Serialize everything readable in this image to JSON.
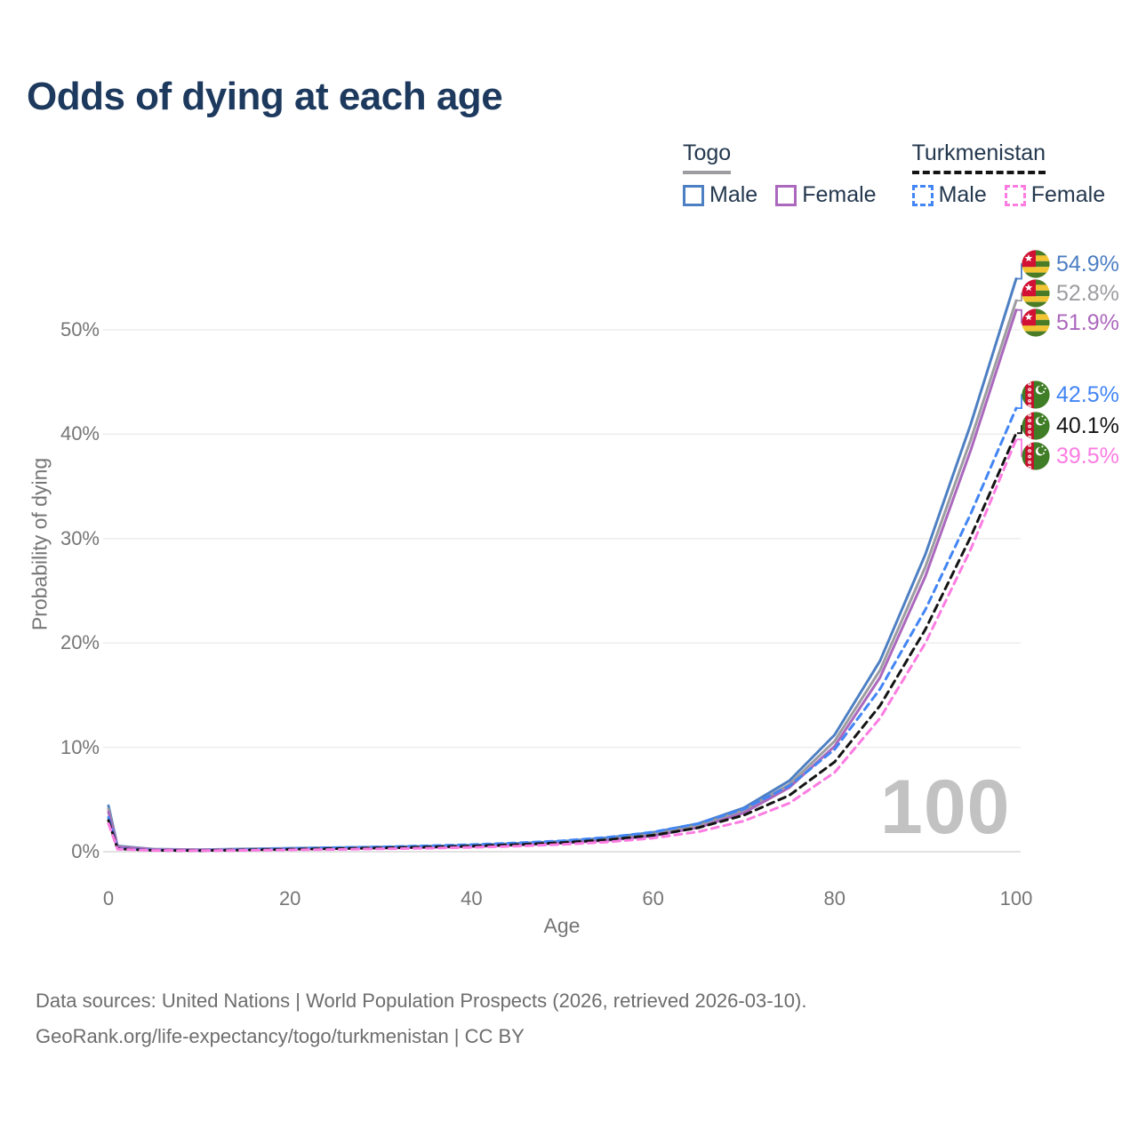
{
  "header": {
    "title": "Odds of dying at each age"
  },
  "legend": {
    "togo": {
      "title": "Togo",
      "male": "Male",
      "female": "Female"
    },
    "turkmenistan": {
      "title": "Turkmenistan",
      "male": "Male",
      "female": "Female"
    }
  },
  "axes": {
    "y_title": "Probability of dying",
    "x_title": "Age",
    "y_ticks": [
      "0%",
      "10%",
      "20%",
      "30%",
      "40%",
      "50%"
    ],
    "x_ticks": [
      "0",
      "20",
      "40",
      "60",
      "80",
      "100"
    ]
  },
  "watermark": "100",
  "footer": {
    "line1": "Data sources: United Nations | World Population Prospects (2026, retrieved 2026-03-10).",
    "line2": "GeoRank.org/life-expectancy/togo/turkmenistan | CC BY"
  },
  "colors": {
    "togo_male": "#4d7fc3",
    "togo_all": "#9d9da1",
    "togo_female": "#ab68bd",
    "turkmenistan_male": "#4285f4",
    "turkmenistan_all": "#141414",
    "turkmenistan_female": "#fc7ce2",
    "title_navy": "#1d3a5e",
    "axis_gray": "#767676",
    "grid": "#ededed"
  },
  "chart_data": {
    "type": "line",
    "title": "Odds of dying at each age",
    "xlabel": "Age",
    "ylabel": "Probability of dying",
    "xlim": [
      0,
      100
    ],
    "ylim_percent": [
      0,
      56
    ],
    "xticks": [
      0,
      20,
      40,
      60,
      80,
      100
    ],
    "yticks": [
      0,
      10,
      20,
      30,
      40,
      50
    ],
    "grid": "horizontal",
    "legend_position": "top-right",
    "x": [
      0,
      1,
      5,
      10,
      15,
      20,
      25,
      30,
      35,
      40,
      45,
      50,
      55,
      60,
      65,
      70,
      75,
      80,
      85,
      90,
      95,
      100
    ],
    "series": [
      {
        "name": "Togo Male",
        "style": "solid",
        "dash": false,
        "color": "#4d7fc3",
        "end_label": "54.9%",
        "flag": "togo",
        "values": [
          4.4,
          0.55,
          0.25,
          0.2,
          0.26,
          0.33,
          0.39,
          0.45,
          0.52,
          0.62,
          0.78,
          1.0,
          1.35,
          1.85,
          2.7,
          4.2,
          6.8,
          11.2,
          18.3,
          28.5,
          41.0,
          54.9
        ]
      },
      {
        "name": "Togo",
        "style": "solid",
        "dash": false,
        "color": "#9d9da1",
        "end_label": "52.8%",
        "flag": "togo",
        "values": [
          4.1,
          0.5,
          0.23,
          0.18,
          0.23,
          0.29,
          0.34,
          0.4,
          0.46,
          0.55,
          0.7,
          0.9,
          1.2,
          1.68,
          2.5,
          3.95,
          6.45,
          10.6,
          17.4,
          27.3,
          39.5,
          52.8
        ]
      },
      {
        "name": "Togo Female",
        "style": "solid",
        "dash": false,
        "color": "#ab68bd",
        "end_label": "51.9%",
        "flag": "togo",
        "values": [
          3.8,
          0.45,
          0.21,
          0.17,
          0.21,
          0.25,
          0.3,
          0.35,
          0.41,
          0.49,
          0.63,
          0.82,
          1.08,
          1.52,
          2.32,
          3.72,
          6.15,
          10.1,
          16.7,
          26.4,
          38.5,
          51.9
        ]
      },
      {
        "name": "Turkmenistan Male",
        "style": "dashed",
        "dash": true,
        "color": "#4285f4",
        "end_label": "42.5%",
        "flag": "turkmenistan",
        "values": [
          3.3,
          0.3,
          0.15,
          0.12,
          0.2,
          0.3,
          0.38,
          0.46,
          0.56,
          0.68,
          0.84,
          1.05,
          1.38,
          1.88,
          2.7,
          4.1,
          6.3,
          9.8,
          15.6,
          23.2,
          32.4,
          42.5
        ]
      },
      {
        "name": "Turkmenistan",
        "style": "dashed",
        "dash": true,
        "color": "#141414",
        "end_label": "40.1%",
        "flag": "turkmenistan",
        "values": [
          3.0,
          0.27,
          0.13,
          0.11,
          0.16,
          0.23,
          0.29,
          0.36,
          0.44,
          0.54,
          0.68,
          0.87,
          1.15,
          1.58,
          2.3,
          3.5,
          5.4,
          8.6,
          14.0,
          21.3,
          30.2,
          40.1
        ]
      },
      {
        "name": "Turkmenistan Female",
        "style": "dashed",
        "dash": true,
        "color": "#fc7ce2",
        "end_label": "39.5%",
        "flag": "turkmenistan",
        "values": [
          2.7,
          0.24,
          0.12,
          0.1,
          0.13,
          0.17,
          0.21,
          0.27,
          0.33,
          0.42,
          0.54,
          0.7,
          0.93,
          1.3,
          1.92,
          2.95,
          4.65,
          7.6,
          12.8,
          20.0,
          29.0,
          39.5
        ]
      }
    ]
  }
}
